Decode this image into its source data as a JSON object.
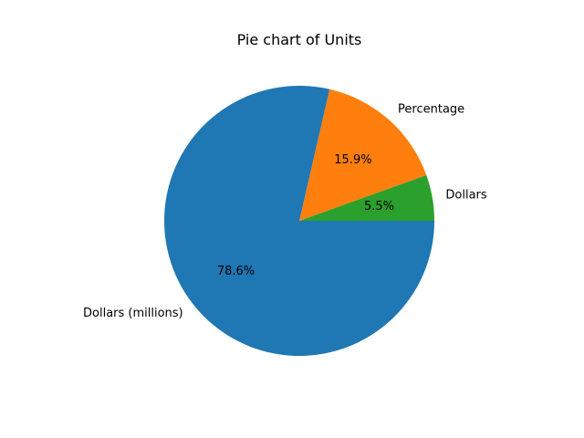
{
  "chart_data": {
    "type": "pie",
    "title": "Pie chart of Units",
    "slices": [
      {
        "label": "Dollars",
        "value": 5.5,
        "pct_label": "5.5%",
        "color": "#2ca02c"
      },
      {
        "label": "Percentage",
        "value": 15.9,
        "pct_label": "15.9%",
        "color": "#ff7f0e"
      },
      {
        "label": "Dollars (millions)",
        "value": 78.6,
        "pct_label": "78.6%",
        "color": "#1f77b4"
      }
    ],
    "start_angle_deg": 0,
    "direction": "counterclockwise",
    "legend": "none"
  }
}
